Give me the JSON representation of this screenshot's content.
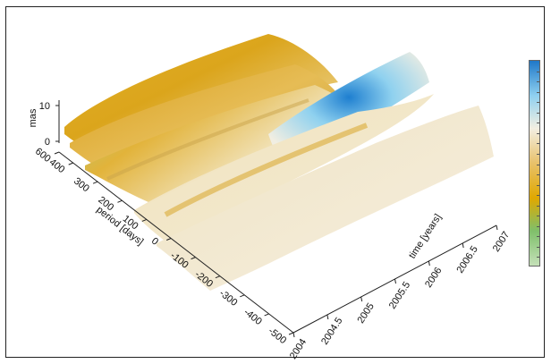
{
  "chart_data": {
    "type": "surface",
    "zlabel": "mas",
    "ylabel": "period [days]",
    "xlabel": "time [years]",
    "z_ticks": [
      "0",
      "10"
    ],
    "period_ticks": [
      "600",
      "400",
      "300",
      "200",
      "100",
      "0",
      "-100",
      "-200",
      "-300",
      "-400",
      "-500"
    ],
    "time_ticks": [
      "2004",
      "2004.5",
      "2005",
      "2005.5",
      "2006",
      "2006.5",
      "2007"
    ],
    "xlim": [
      2004,
      2007
    ],
    "ylim": [
      -500,
      600
    ],
    "colorbar": {
      "colors": [
        "#1f78c8",
        "#8fd0f0",
        "#f3efe2",
        "#e8c16a",
        "#e0a800",
        "#7fbf6a",
        "#c4e0b8"
      ]
    }
  }
}
